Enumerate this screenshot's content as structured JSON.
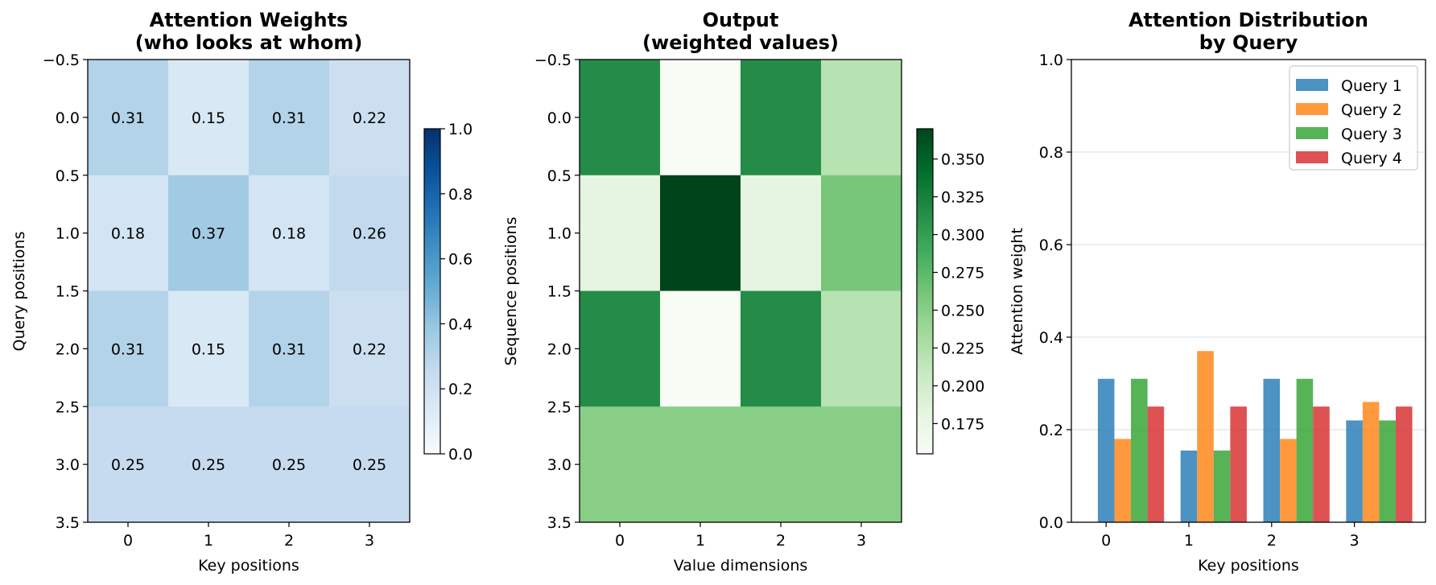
{
  "chart_data": [
    {
      "type": "heatmap",
      "title_line1": "Attention Weights",
      "title_line2": "(who looks at whom)",
      "xlabel": "Key positions",
      "ylabel": "Query positions",
      "colormap": "Blues",
      "x_ticks": [
        "0",
        "1",
        "2",
        "3"
      ],
      "y_ticks": [
        "−0.5",
        "0.0",
        "0.5",
        "1.0",
        "1.5",
        "2.0",
        "2.5",
        "3.0",
        "3.5"
      ],
      "values": [
        [
          0.31,
          0.15,
          0.31,
          0.22
        ],
        [
          0.18,
          0.37,
          0.18,
          0.26
        ],
        [
          0.31,
          0.15,
          0.31,
          0.22
        ],
        [
          0.25,
          0.25,
          0.25,
          0.25
        ]
      ],
      "cell_labels": [
        [
          "0.31",
          "0.15",
          "0.31",
          "0.22"
        ],
        [
          "0.18",
          "0.37",
          "0.18",
          "0.26"
        ],
        [
          "0.31",
          "0.15",
          "0.31",
          "0.22"
        ],
        [
          "0.25",
          "0.25",
          "0.25",
          "0.25"
        ]
      ],
      "colorbar": {
        "range": [
          0,
          1
        ],
        "ticks": [
          0,
          0.2,
          0.4,
          0.6,
          0.8,
          1.0
        ],
        "tick_labels": [
          "0.0",
          "0.2",
          "0.4",
          "0.6",
          "0.8",
          "1.0"
        ]
      }
    },
    {
      "type": "heatmap",
      "title_line1": "Output",
      "title_line2": "(weighted values)",
      "xlabel": "Value dimensions",
      "ylabel": "Sequence positions",
      "colormap": "Greens",
      "x_ticks": [
        "0",
        "1",
        "2",
        "3"
      ],
      "y_ticks": [
        "−0.5",
        "0.0",
        "0.5",
        "1.0",
        "1.5",
        "2.0",
        "2.5",
        "3.0",
        "3.5"
      ],
      "values": [
        [
          0.315,
          0.155,
          0.315,
          0.22
        ],
        [
          0.18,
          0.37,
          0.18,
          0.26
        ],
        [
          0.315,
          0.155,
          0.315,
          0.22
        ],
        [
          0.25,
          0.25,
          0.25,
          0.25
        ]
      ],
      "colorbar": {
        "range": [
          0.155,
          0.37
        ],
        "ticks": [
          0.175,
          0.2,
          0.225,
          0.25,
          0.275,
          0.3,
          0.325,
          0.35
        ],
        "tick_labels": [
          "0.175",
          "0.200",
          "0.225",
          "0.250",
          "0.275",
          "0.300",
          "0.325",
          "0.350"
        ]
      }
    },
    {
      "type": "bar",
      "title_line1": "Attention Distribution",
      "title_line2": "by Query",
      "xlabel": "Key positions",
      "ylabel": "Attention weight",
      "categories": [
        "0",
        "1",
        "2",
        "3"
      ],
      "ylim": [
        0,
        1
      ],
      "y_ticks": [
        0,
        0.2,
        0.4,
        0.6,
        0.8,
        1.0
      ],
      "y_tick_labels": [
        "0.0",
        "0.2",
        "0.4",
        "0.6",
        "0.8",
        "1.0"
      ],
      "grid": "horizontal",
      "legend_position": "top-right",
      "series": [
        {
          "name": "Query 1",
          "color": "#1f77b4",
          "values": [
            0.31,
            0.155,
            0.31,
            0.22
          ]
        },
        {
          "name": "Query 2",
          "color": "#ff7f0e",
          "values": [
            0.18,
            0.37,
            0.18,
            0.26
          ]
        },
        {
          "name": "Query 3",
          "color": "#2ca02c",
          "values": [
            0.31,
            0.155,
            0.31,
            0.22
          ]
        },
        {
          "name": "Query 4",
          "color": "#d62728",
          "values": [
            0.25,
            0.25,
            0.25,
            0.25
          ]
        }
      ]
    }
  ]
}
